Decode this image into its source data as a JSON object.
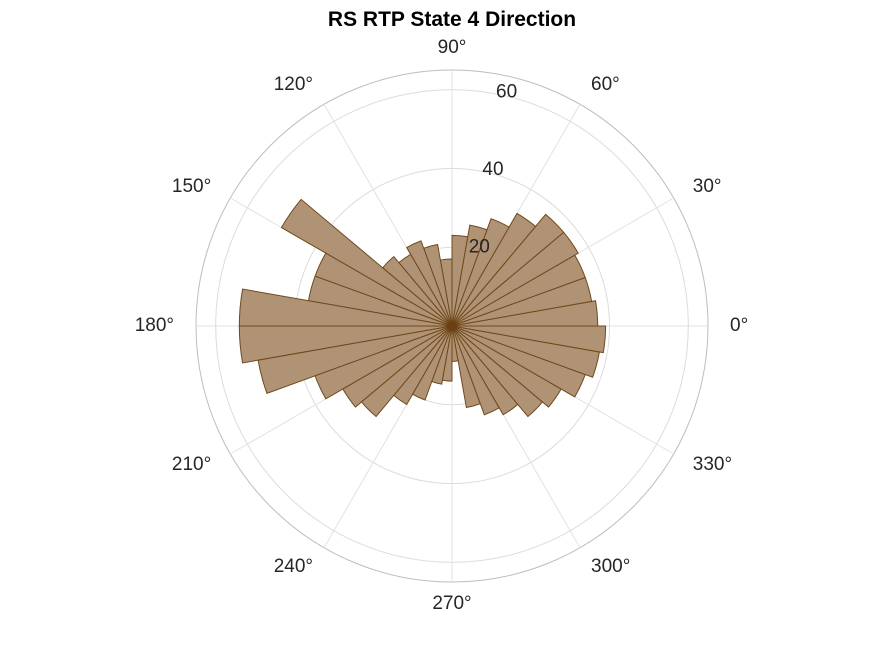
{
  "chart_data": {
    "type": "polar-histogram",
    "title": "RS  RTP State 4 Direction",
    "theta_unit": "degrees",
    "theta_ticks": [
      0,
      30,
      60,
      90,
      120,
      150,
      180,
      210,
      240,
      270,
      300,
      330
    ],
    "theta_tick_labels": [
      "0°",
      "30°",
      "60°",
      "90°",
      "120°",
      "150°",
      "180°",
      "210°",
      "240°",
      "270°",
      "300°",
      "330°"
    ],
    "r_ticks": [
      20,
      40,
      60
    ],
    "r_tick_labels": [
      "20",
      "40",
      "60"
    ],
    "rlim": [
      0,
      65
    ],
    "bin_width_deg": 10,
    "bin_centers_deg": [
      5,
      15,
      25,
      35,
      45,
      55,
      65,
      75,
      85,
      95,
      105,
      115,
      125,
      135,
      145,
      155,
      165,
      175,
      185,
      195,
      205,
      215,
      225,
      235,
      245,
      255,
      265,
      275,
      285,
      295,
      305,
      315,
      325,
      335,
      345,
      355
    ],
    "values": [
      37,
      36,
      36,
      37,
      37,
      33,
      29,
      26,
      23,
      17,
      21,
      23,
      21,
      23,
      50,
      37,
      37,
      54,
      54,
      50,
      37,
      32,
      30,
      23,
      20,
      15,
      14,
      9,
      21,
      24,
      26,
      30,
      32,
      36,
      38,
      39
    ],
    "face_color": "#b09275",
    "edge_color": "#6e4a1c",
    "grid": true
  }
}
